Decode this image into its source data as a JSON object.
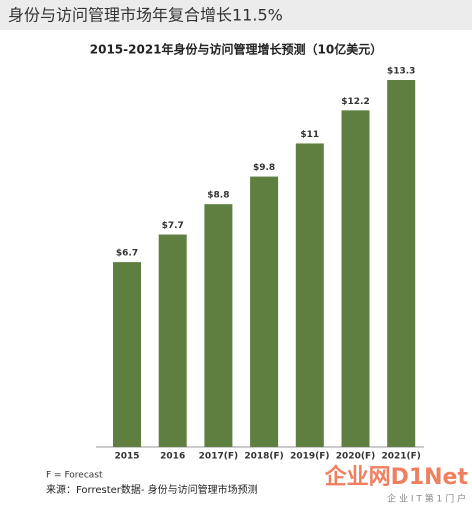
{
  "header": {
    "title": "身份与访问管理市场年复合增长11.5%"
  },
  "chart_data": {
    "type": "bar",
    "title": "2015-2021年身份与访问管理增长预测（10亿美元）",
    "categories": [
      "2015",
      "2016",
      "2017(F)",
      "2018(F)",
      "2019(F)",
      "2020(F)",
      "2021(F)"
    ],
    "values": [
      6.7,
      7.7,
      8.8,
      9.8,
      11,
      12.2,
      13.3
    ],
    "value_labels": [
      "$6.7",
      "$7.7",
      "$8.8",
      "$9.8",
      "$11",
      "$12.2",
      "$13.3"
    ],
    "color": "#5e7f3f"
  },
  "footer": {
    "note": "F = Forecast",
    "source": "来源：Forrester数据- 身份与访问管理市场预测"
  },
  "watermark": {
    "logo": "企业网D1Net",
    "tagline": "企 业 I T 第 1 门 户"
  }
}
